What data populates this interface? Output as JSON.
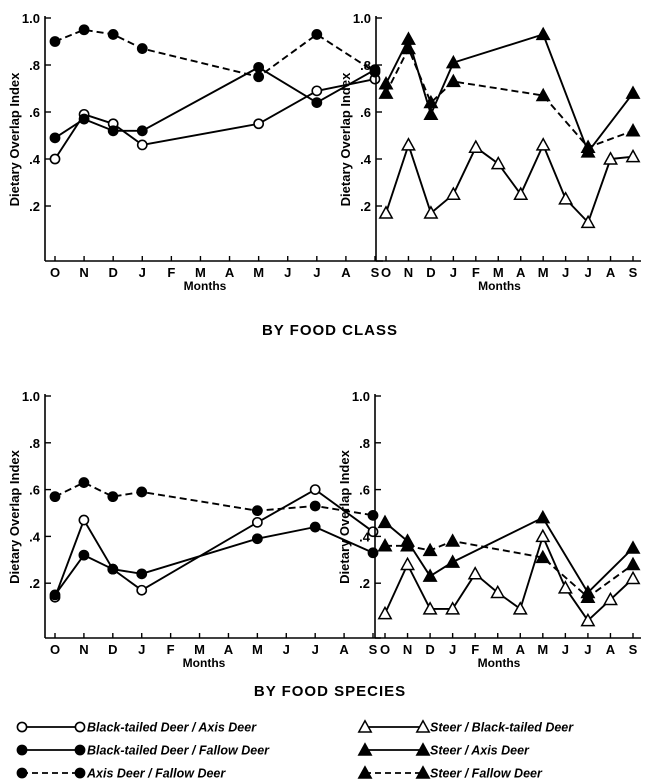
{
  "sections": {
    "by_food_class": "BY FOOD CLASS",
    "by_food_species": "BY FOOD SPECIES"
  },
  "months": [
    "O",
    "N",
    "D",
    "J",
    "F",
    "M",
    "A",
    "M",
    "J",
    "J",
    "A",
    "S"
  ],
  "y_ticks": [
    "1.0",
    ".8",
    ".6",
    ".4",
    ".2"
  ],
  "legend": [
    {
      "label": "Black-tailed Deer / Axis Deer",
      "marker": "open-circle",
      "line": "solid"
    },
    {
      "label": "Black-tailed Deer / Fallow Deer",
      "marker": "filled-circle",
      "line": "solid"
    },
    {
      "label": "Axis Deer / Fallow Deer",
      "marker": "filled-circle",
      "line": "dashed"
    },
    {
      "label": "Steer / Black-tailed Deer",
      "marker": "open-triangle",
      "line": "solid"
    },
    {
      "label": "Steer / Axis Deer",
      "marker": "filled-triangle",
      "line": "solid"
    },
    {
      "label": "Steer / Fallow Deer",
      "marker": "filled-triangle",
      "line": "dashed"
    }
  ],
  "chart_data": [
    {
      "type": "line",
      "section": "BY FOOD CLASS",
      "xlabel": "Months",
      "ylabel": "Dietary Overlap Index",
      "ylim": [
        0,
        1.0
      ],
      "series": [
        {
          "name": "Black-tailed Deer / Axis Deer",
          "marker": "open-circle",
          "line": "solid",
          "points": [
            [
              0,
              0.4
            ],
            [
              1,
              0.59
            ],
            [
              2,
              0.55
            ],
            [
              3,
              0.46
            ],
            [
              7,
              0.55
            ],
            [
              9,
              0.69
            ],
            [
              11,
              0.74
            ]
          ]
        },
        {
          "name": "Black-tailed Deer / Fallow Deer",
          "marker": "filled-circle",
          "line": "solid",
          "points": [
            [
              0,
              0.49
            ],
            [
              1,
              0.57
            ],
            [
              2,
              0.52
            ],
            [
              3,
              0.52
            ],
            [
              7,
              0.79
            ],
            [
              9,
              0.64
            ],
            [
              11,
              0.78
            ]
          ]
        },
        {
          "name": "Axis Deer / Fallow Deer",
          "marker": "filled-circle",
          "line": "dashed",
          "points": [
            [
              0,
              0.9
            ],
            [
              1,
              0.95
            ],
            [
              2,
              0.93
            ],
            [
              3,
              0.87
            ],
            [
              7,
              0.75
            ],
            [
              9,
              0.93
            ],
            [
              11,
              0.77
            ]
          ]
        }
      ]
    },
    {
      "type": "line",
      "section": "BY FOOD CLASS",
      "xlabel": "Months",
      "ylabel": "Dietary Overlap Index",
      "ylim": [
        0,
        1.0
      ],
      "series": [
        {
          "name": "Steer / Black-tailed Deer",
          "marker": "open-triangle",
          "line": "solid",
          "points": [
            [
              0,
              0.17
            ],
            [
              1,
              0.46
            ],
            [
              2,
              0.17
            ],
            [
              3,
              0.25
            ],
            [
              4,
              0.45
            ],
            [
              5,
              0.38
            ],
            [
              6,
              0.25
            ],
            [
              7,
              0.46
            ],
            [
              8,
              0.23
            ],
            [
              9,
              0.13
            ],
            [
              10,
              0.4
            ],
            [
              11,
              0.41
            ]
          ]
        },
        {
          "name": "Steer / Axis Deer",
          "marker": "filled-triangle",
          "line": "solid",
          "points": [
            [
              0,
              0.72
            ],
            [
              1,
              0.91
            ],
            [
              2,
              0.59
            ],
            [
              3,
              0.81
            ],
            [
              7,
              0.93
            ],
            [
              9,
              0.43
            ],
            [
              11,
              0.68
            ]
          ]
        },
        {
          "name": "Steer / Fallow Deer",
          "marker": "filled-triangle",
          "line": "dashed",
          "points": [
            [
              0,
              0.68
            ],
            [
              1,
              0.87
            ],
            [
              2,
              0.64
            ],
            [
              3,
              0.73
            ],
            [
              7,
              0.67
            ],
            [
              9,
              0.45
            ],
            [
              11,
              0.52
            ]
          ]
        }
      ]
    },
    {
      "type": "line",
      "section": "BY FOOD SPECIES",
      "xlabel": "Months",
      "ylabel": "Dietary Overlap Index",
      "ylim": [
        0,
        1.0
      ],
      "series": [
        {
          "name": "Black-tailed Deer / Axis Deer",
          "marker": "open-circle",
          "line": "solid",
          "points": [
            [
              0,
              0.14
            ],
            [
              1,
              0.47
            ],
            [
              2,
              0.26
            ],
            [
              3,
              0.17
            ],
            [
              7,
              0.46
            ],
            [
              9,
              0.6
            ],
            [
              11,
              0.42
            ]
          ]
        },
        {
          "name": "Black-tailed Deer / Fallow Deer",
          "marker": "filled-circle",
          "line": "solid",
          "points": [
            [
              0,
              0.15
            ],
            [
              1,
              0.32
            ],
            [
              2,
              0.26
            ],
            [
              3,
              0.24
            ],
            [
              7,
              0.39
            ],
            [
              9,
              0.44
            ],
            [
              11,
              0.33
            ]
          ]
        },
        {
          "name": "Axis Deer / Fallow Deer",
          "marker": "filled-circle",
          "line": "dashed",
          "points": [
            [
              0,
              0.57
            ],
            [
              1,
              0.63
            ],
            [
              2,
              0.57
            ],
            [
              3,
              0.59
            ],
            [
              7,
              0.51
            ],
            [
              9,
              0.53
            ],
            [
              11,
              0.49
            ]
          ]
        }
      ]
    },
    {
      "type": "line",
      "section": "BY FOOD SPECIES",
      "xlabel": "Months",
      "ylabel": "Dietary Overlap Index",
      "ylim": [
        0,
        1.0
      ],
      "series": [
        {
          "name": "Steer / Black-tailed Deer",
          "marker": "open-triangle",
          "line": "solid",
          "points": [
            [
              0,
              0.07
            ],
            [
              1,
              0.28
            ],
            [
              2,
              0.09
            ],
            [
              3,
              0.09
            ],
            [
              4,
              0.24
            ],
            [
              5,
              0.16
            ],
            [
              6,
              0.09
            ],
            [
              7,
              0.4
            ],
            [
              8,
              0.18
            ],
            [
              9,
              0.04
            ],
            [
              10,
              0.13
            ],
            [
              11,
              0.22
            ]
          ]
        },
        {
          "name": "Steer / Axis Deer",
          "marker": "filled-triangle",
          "line": "solid",
          "points": [
            [
              0,
              0.46
            ],
            [
              1,
              0.38
            ],
            [
              2,
              0.23
            ],
            [
              3,
              0.29
            ],
            [
              7,
              0.48
            ],
            [
              9,
              0.16
            ],
            [
              11,
              0.35
            ]
          ]
        },
        {
          "name": "Steer / Fallow Deer",
          "marker": "filled-triangle",
          "line": "dashed",
          "points": [
            [
              0,
              0.36
            ],
            [
              1,
              0.36
            ],
            [
              2,
              0.34
            ],
            [
              3,
              0.38
            ],
            [
              7,
              0.31
            ],
            [
              9,
              0.14
            ],
            [
              11,
              0.28
            ]
          ]
        }
      ]
    }
  ]
}
